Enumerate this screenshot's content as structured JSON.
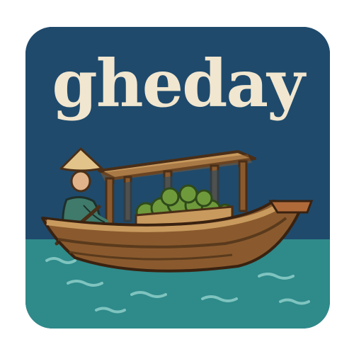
{
  "logo": {
    "brand_name": "gheday"
  },
  "colors": {
    "sky": "#1f4a6c",
    "water": "#2f8a8a",
    "text": "#f1e6cf",
    "boat_wood": "#8a5a2e",
    "boat_light": "#c99a5e",
    "fruit": "#6f9a3c"
  },
  "icons": {
    "boat": "wooden-boat-icon",
    "boatman": "boatman-icon",
    "hat": "conical-hat-icon",
    "cargo": "fruit-cargo-icon"
  }
}
